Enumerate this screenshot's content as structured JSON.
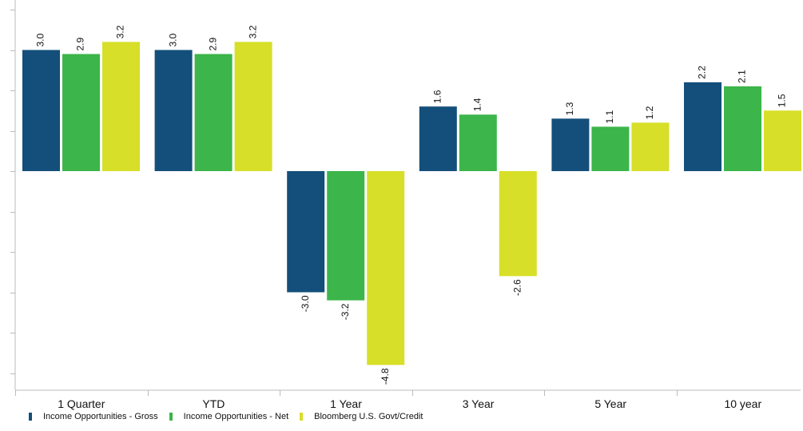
{
  "chart_data": {
    "type": "bar",
    "categories": [
      "1 Quarter",
      "YTD",
      "1 Year",
      "3 Year",
      "5 Year",
      "10 year"
    ],
    "series": [
      {
        "name": "Income Opportunities - Gross",
        "color": "#134f7a",
        "values": [
          3.0,
          3.0,
          -3.0,
          1.6,
          1.3,
          2.2
        ]
      },
      {
        "name": "Income Opportunities - Net",
        "color": "#3cb54a",
        "values": [
          2.9,
          2.9,
          -3.2,
          1.4,
          1.1,
          2.1
        ]
      },
      {
        "name": "Bloomberg U.S. Govt/Credit",
        "color": "#d7df28",
        "values": [
          3.2,
          3.2,
          -4.8,
          -2.6,
          1.2,
          1.5
        ]
      }
    ],
    "data_labels": [
      [
        "3.0",
        "3.0",
        "-3.0",
        "1.6",
        "1.3",
        "2.2"
      ],
      [
        "2.9",
        "2.9",
        "-3.2",
        "1.4",
        "1.1",
        "2.1"
      ],
      [
        "3.2",
        "3.2",
        "-4.8",
        "-2.6",
        "1.2",
        "1.5"
      ]
    ],
    "ylim": [
      -5,
      4
    ],
    "grid": false,
    "legend_position": "bottom-left"
  }
}
